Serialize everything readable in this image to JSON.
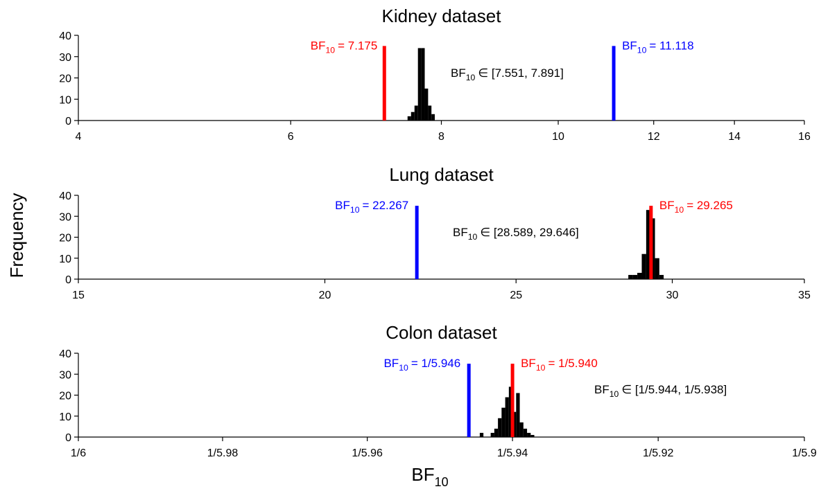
{
  "shared": {
    "ylabel": "Frequency",
    "xlabel": {
      "base": "BF",
      "sub": "10"
    }
  },
  "chart_data": [
    {
      "type": "histogram",
      "title": "Kidney dataset",
      "xscale": "log",
      "color": "#000000",
      "xlim": [
        4,
        16
      ],
      "xticks": [
        4,
        6,
        8,
        10,
        12,
        14,
        16
      ],
      "ylim": [
        0,
        40
      ],
      "yticks": [
        0,
        10,
        20,
        30,
        40
      ],
      "bins": [
        7.5,
        7.55,
        7.6,
        7.65,
        7.7,
        7.75,
        7.8,
        7.85,
        7.9
      ],
      "counts": [
        2,
        4,
        7,
        34,
        34,
        15,
        7,
        3
      ],
      "markers": [
        {
          "x": 7.175,
          "color": "#ff0000",
          "label": {
            "base": "BF",
            "sub": "10",
            "text": "= 7.175"
          }
        },
        {
          "x": 11.118,
          "color": "#0000ff",
          "label": {
            "base": "BF",
            "sub": "10",
            "text": "= 11.118"
          }
        }
      ],
      "interval_label": {
        "base": "BF",
        "sub": "10",
        "text": "∈ [7.551, 7.891]"
      }
    },
    {
      "type": "histogram",
      "title": "Lung dataset",
      "xscale": "log",
      "color": "#000000",
      "xlim": [
        15,
        35
      ],
      "xticks": [
        15,
        20,
        25,
        30,
        35
      ],
      "ylim": [
        0,
        40
      ],
      "yticks": [
        0,
        10,
        20,
        30,
        40
      ],
      "bins": [
        28.5,
        28.65,
        28.8,
        28.95,
        29.1,
        29.25,
        29.4,
        29.55,
        29.7
      ],
      "counts": [
        2,
        2,
        3,
        12,
        33,
        29,
        10,
        2
      ],
      "markers": [
        {
          "x": 22.267,
          "color": "#0000ff",
          "label": {
            "base": "BF",
            "sub": "10",
            "text": "= 22.267"
          }
        },
        {
          "x": 29.265,
          "color": "#ff0000",
          "label": {
            "base": "BF",
            "sub": "10",
            "text": "= 29.265"
          }
        }
      ],
      "interval_label": {
        "base": "BF",
        "sub": "10",
        "text": "∈ [28.589, 29.646]"
      }
    },
    {
      "type": "histogram",
      "title": "Colon dataset",
      "xscale": "log",
      "color": "#000000",
      "xlim": [
        0.1666667,
        0.1694915
      ],
      "xticks": [
        {
          "value": 0.1666667,
          "label": "1/6"
        },
        {
          "value": 0.1672241,
          "label": "1/5.98"
        },
        {
          "value": 0.1677852,
          "label": "1/5.96"
        },
        {
          "value": 0.1683502,
          "label": "1/5.94"
        },
        {
          "value": 0.1689189,
          "label": "1/5.92"
        },
        {
          "value": 0.1694915,
          "label": "1/5.9"
        }
      ],
      "ylim": [
        0,
        40
      ],
      "yticks": [
        0,
        10,
        20,
        30,
        40
      ],
      "bins": [
        0.1682227,
        0.1682369,
        0.168251,
        0.1682652,
        0.1682793,
        0.1682935,
        0.1683076,
        0.1683218,
        0.168336,
        0.1683502,
        0.1683643,
        0.1683785,
        0.1683927,
        0.1684069,
        0.1684211,
        0.1684352
      ],
      "counts": [
        2,
        0,
        0,
        2,
        4,
        9,
        14,
        19,
        24,
        12,
        21,
        7,
        4,
        2,
        1
      ],
      "markers": [
        {
          "x": 0.1681803,
          "color": "#0000ff",
          "label": {
            "base": "BF",
            "sub": "10",
            "text": "=  1/5.946"
          }
        },
        {
          "x": 0.1683502,
          "color": "#ff0000",
          "label": {
            "base": "BF",
            "sub": "10",
            "text": "=  1/5.940"
          }
        }
      ],
      "interval_label": {
        "base": "BF",
        "sub": "10",
        "text": "∈ [1/5.944, 1/5.938]"
      }
    }
  ]
}
